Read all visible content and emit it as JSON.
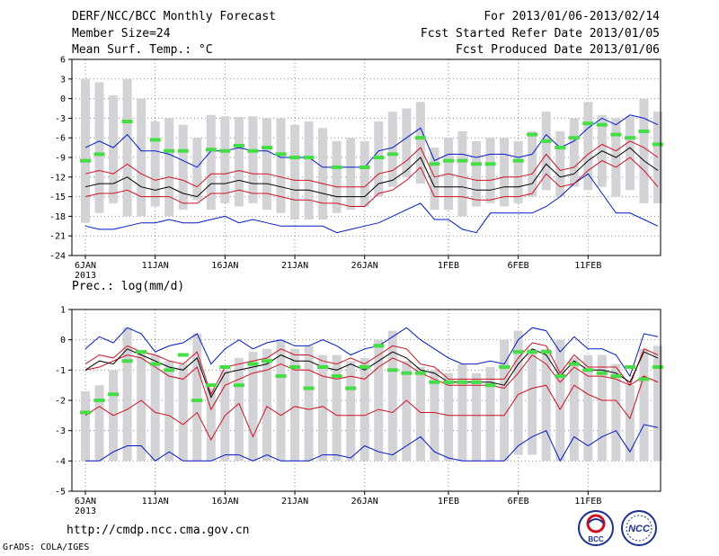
{
  "header": {
    "title": "DERF/NCC/BCC Monthly Forecast",
    "member_size": "Member Size=24",
    "variable": "Mean Surf. Temp.: °C",
    "period": "For 2013/01/06-2013/02/14",
    "start_date": "Fcst Started Refer Date 2013/01/05",
    "produced_date": "Fcst Produced Date 2013/01/06"
  },
  "footer": {
    "url": "http://cmdp.ncc.cma.gov.cn",
    "credit": "GrADS: COLA/IGES",
    "logo_bcc": "BCC",
    "logo_ncc": "NCC"
  },
  "colors": {
    "bar": "#d3d3d7",
    "median": "#000000",
    "quartile": "#d01020",
    "extreme": "#0018c8",
    "observed": "#44dd44",
    "grid": "#888888"
  },
  "chart_data": [
    {
      "type": "box-ensemble",
      "title": "Mean Surf. Temp.: °C",
      "ylim": [
        -24,
        6
      ],
      "yticks": [
        6,
        3,
        0,
        -3,
        -6,
        -9,
        -12,
        -15,
        -18,
        -21,
        -24
      ],
      "xticks": [
        {
          "day": 0,
          "label": "6JAN"
        },
        {
          "day": 5,
          "label": "11JAN"
        },
        {
          "day": 10,
          "label": "16JAN"
        },
        {
          "day": 15,
          "label": "21JAN"
        },
        {
          "day": 20,
          "label": "26JAN"
        },
        {
          "day": 26,
          "label": "1FEB"
        },
        {
          "day": 31,
          "label": "6FEB"
        },
        {
          "day": 36,
          "label": "11FEB"
        }
      ],
      "year_label": "2013",
      "bar_top": [
        3,
        2.5,
        0.5,
        3,
        0,
        -3.5,
        -3,
        -4,
        -6,
        -2.5,
        -2.7,
        -2.8,
        -2.7,
        -3,
        -3,
        -4,
        -3.5,
        -4.5,
        -6.5,
        -6,
        -6.5,
        -3.5,
        -2,
        -1.5,
        -0.5,
        -7.5,
        -6,
        -5,
        -6.5,
        -6,
        -6,
        -6.5,
        -5,
        -2,
        -5,
        -3,
        -0.5,
        -2.5,
        -3,
        -2.7,
        0,
        -2
      ],
      "bar_bottom": [
        -19,
        -17.5,
        -16,
        -18,
        -18,
        -16.5,
        -18,
        -17,
        -15.5,
        -17,
        -16,
        -16.5,
        -16,
        -17,
        -17.5,
        -18.5,
        -18.5,
        -18.5,
        -17.5,
        -17,
        -16.5,
        -15,
        -13.5,
        -12,
        -13,
        -17,
        -17,
        -18,
        -16.5,
        -16,
        -16.5,
        -16,
        -15,
        -14,
        -15,
        -13.5,
        -14,
        -13.5,
        -15,
        -14,
        -16,
        -16
      ],
      "max": [
        -7.5,
        -6.5,
        -7.5,
        -5.5,
        -8,
        -8,
        -8.5,
        -9.5,
        -10.5,
        -8,
        -8,
        -7.5,
        -8,
        -8,
        -9,
        -9,
        -9,
        -10.5,
        -10.5,
        -10.5,
        -10.5,
        -8,
        -7.5,
        -6,
        -4.5,
        -9.5,
        -8.5,
        -8.5,
        -9,
        -8.5,
        -8.5,
        -9,
        -8.5,
        -5.5,
        -7.5,
        -6.5,
        -4.5,
        -3,
        -4,
        -2.5,
        -3,
        -4
      ],
      "q75": [
        -11.5,
        -11,
        -11.5,
        -10,
        -11.5,
        -12.5,
        -12,
        -12.5,
        -13.5,
        -11.5,
        -11.5,
        -11,
        -11.5,
        -11.5,
        -12,
        -12.5,
        -12.5,
        -13,
        -13.5,
        -13.5,
        -13.5,
        -11.5,
        -11,
        -9.5,
        -7.5,
        -12,
        -11.5,
        -12,
        -12.5,
        -12.5,
        -12,
        -12,
        -11.5,
        -8.5,
        -11,
        -10.5,
        -8.5,
        -7,
        -8,
        -6.5,
        -7.5,
        -9
      ],
      "median": [
        -13.5,
        -13,
        -13,
        -12,
        -13.5,
        -14,
        -13.5,
        -14.5,
        -15,
        -13,
        -13,
        -12.5,
        -13,
        -13,
        -13.5,
        -14,
        -14,
        -14.5,
        -15,
        -15,
        -15,
        -13,
        -12.5,
        -11,
        -9,
        -13.5,
        -13.5,
        -13.5,
        -14,
        -14,
        -13.5,
        -13.5,
        -13,
        -10,
        -12,
        -11.5,
        -9.5,
        -8,
        -9,
        -7.5,
        -9.5,
        -11
      ],
      "q25": [
        -15,
        -14.5,
        -14.5,
        -14,
        -15,
        -15,
        -15,
        -16,
        -16,
        -14.5,
        -14.5,
        -14,
        -14.5,
        -14.5,
        -15,
        -15.5,
        -15.5,
        -16,
        -16,
        -16.5,
        -16.5,
        -14.5,
        -14,
        -12.5,
        -10.5,
        -15,
        -15,
        -15,
        -15.5,
        -15.5,
        -15,
        -15,
        -14.5,
        -11.5,
        -13.5,
        -13,
        -11,
        -9.5,
        -10.5,
        -9,
        -11,
        -13.5
      ],
      "min": [
        -19.5,
        -20,
        -20,
        -19.5,
        -19,
        -19,
        -18.5,
        -19,
        -19,
        -18.5,
        -18,
        -19,
        -18.5,
        -19,
        -19.5,
        -19.5,
        -19.5,
        -19.5,
        -20.5,
        -20,
        -19.5,
        -19,
        -18,
        -17,
        -16,
        -18.5,
        -18.5,
        -20,
        -20.5,
        -17.5,
        -17.5,
        -17.5,
        -17.5,
        -16.5,
        -15,
        -13,
        -11.5,
        -14.5,
        -17.5,
        -17.5,
        -18.5,
        -19.5
      ],
      "observed": [
        -9.5,
        -8.5,
        null,
        -3.5,
        null,
        -6.3,
        -8,
        -8,
        null,
        -7.8,
        -8,
        -7.2,
        -8,
        -7.5,
        -8.5,
        -9,
        -9,
        null,
        -10.5,
        null,
        -10.5,
        -9,
        -8.5,
        null,
        -6,
        -10,
        -9.5,
        -9.5,
        -10,
        -10,
        null,
        -9.5,
        -5.5,
        -6.5,
        -7.5,
        -6,
        -3.8,
        -4,
        -5.5,
        -6,
        -5,
        -7
      ]
    },
    {
      "type": "box-ensemble",
      "title": "Prec.: log(mm/d)",
      "ylim": [
        -5,
        1
      ],
      "yticks": [
        1,
        0,
        -1,
        -2,
        -3,
        -4,
        -5
      ],
      "xticks": [
        {
          "day": 0,
          "label": "6JAN"
        },
        {
          "day": 5,
          "label": "11JAN"
        },
        {
          "day": 10,
          "label": "16JAN"
        },
        {
          "day": 15,
          "label": "21JAN"
        },
        {
          "day": 20,
          "label": "26JAN"
        },
        {
          "day": 26,
          "label": "1FEB"
        },
        {
          "day": 31,
          "label": "6FEB"
        },
        {
          "day": 36,
          "label": "11FEB"
        }
      ],
      "year_label": "2013",
      "bar_top": [
        -1.7,
        -1.5,
        -1,
        0.4,
        -0.4,
        -0.5,
        -0.7,
        -0.8,
        0.2,
        -1.6,
        -1,
        -0.6,
        -0.4,
        -0.3,
        0,
        -0.3,
        -0.2,
        -0.5,
        -0.5,
        -0.7,
        -0.6,
        0,
        0.3,
        -0.7,
        -0.9,
        -1,
        -1.1,
        -0.8,
        -1.1,
        -0.9,
        0,
        0.3,
        -0.3,
        -0.3,
        0,
        -0.6,
        -0.5,
        -0.5,
        -0.8,
        -1.5,
        -0.3,
        -0.2
      ],
      "bar_bottom": [
        -4,
        -4,
        -4,
        -4,
        -4,
        -4,
        -4,
        -4,
        -4,
        -4,
        -4,
        -4,
        -4,
        -4,
        -4,
        -4,
        -4,
        -4,
        -4,
        -4,
        -4,
        -4,
        -4,
        -4,
        -4,
        -4,
        -4,
        -4,
        -4,
        -4,
        -4,
        -3.8,
        -3.8,
        -4,
        -4,
        -4,
        -4,
        -4,
        -4,
        -4,
        -4,
        -4
      ],
      "max": [
        -0.3,
        0.1,
        -0.1,
        0.4,
        0.2,
        -0.4,
        -0.2,
        -0.1,
        0.2,
        -0.8,
        -0.3,
        0,
        -0.3,
        -0.1,
        0,
        -0.2,
        -0.2,
        0,
        -0.2,
        -0.5,
        -0.3,
        -0.2,
        0.1,
        0.4,
        0,
        -0.3,
        -0.6,
        -0.8,
        -0.8,
        -0.7,
        -0.8,
        0,
        0.4,
        0.3,
        -0.4,
        0.1,
        -0.3,
        -0.3,
        -0.5,
        -1.2,
        0.2,
        0.1
      ],
      "q75": [
        -0.8,
        -0.5,
        -0.6,
        -0.2,
        -0.4,
        -0.5,
        -0.7,
        -0.8,
        -0.4,
        -1.8,
        -0.9,
        -0.8,
        -0.7,
        -0.6,
        -0.3,
        -0.5,
        -0.5,
        -0.7,
        -0.8,
        -0.6,
        -0.8,
        -0.5,
        -0.2,
        -0.3,
        -0.8,
        -0.9,
        -1.3,
        -1.3,
        -1.3,
        -1.3,
        -1.3,
        -0.6,
        -0.1,
        -0.2,
        -1.1,
        -0.5,
        -0.9,
        -0.9,
        -0.9,
        -1.5,
        -0.3,
        -0.5
      ],
      "median": [
        -1,
        -0.7,
        -0.8,
        -0.3,
        -0.5,
        -0.7,
        -0.9,
        -1,
        -0.6,
        -1.9,
        -1.1,
        -1,
        -0.9,
        -0.8,
        -0.5,
        -0.7,
        -0.7,
        -0.9,
        -1,
        -0.8,
        -1,
        -0.7,
        -0.4,
        -0.6,
        -1,
        -1.1,
        -1.4,
        -1.4,
        -1.4,
        -1.4,
        -1.5,
        -0.8,
        -0.3,
        -0.5,
        -1.2,
        -0.7,
        -1,
        -1,
        -1.1,
        -1.4,
        -0.4,
        -0.6
      ],
      "q25": [
        -1,
        -0.9,
        -0.7,
        -0.5,
        -0.6,
        -0.9,
        -1.2,
        -1.3,
        -0.9,
        -2.3,
        -1.5,
        -1.3,
        -1.1,
        -1,
        -0.8,
        -1,
        -1,
        -1.2,
        -1.3,
        -1.2,
        -1.3,
        -0.9,
        -0.6,
        -0.8,
        -1.1,
        -1.3,
        -1.5,
        -1.5,
        -1.5,
        -1.5,
        -1.6,
        -1.1,
        -0.5,
        -0.8,
        -1.4,
        -0.9,
        -1.2,
        -1.2,
        -1.3,
        -1.5,
        -1.2,
        -1.4
      ],
      "q10": [
        -2.5,
        -2.2,
        -2.5,
        -2.3,
        -2,
        -2.4,
        -2.5,
        -2.8,
        -2.4,
        -3.3,
        -2.5,
        -2.1,
        -3.2,
        -2.2,
        -2.5,
        -2.2,
        -2.3,
        -2.2,
        -2.5,
        -2.5,
        -2.5,
        -2.3,
        -2.4,
        -2,
        -2.4,
        -2.4,
        -2.5,
        -2.5,
        -2.5,
        -2.5,
        -2.5,
        -1.8,
        -1.6,
        -1.5,
        -2.3,
        -1.5,
        -1.8,
        -2,
        -2,
        -2.6,
        -1.2,
        -1.4
      ],
      "min": [
        -4,
        -4,
        -3.7,
        -3.5,
        -3.5,
        -4,
        -3.7,
        -4,
        -4,
        -4,
        -3.8,
        -3.8,
        -4,
        -3.8,
        -4,
        -4,
        -4,
        -3.8,
        -3.8,
        -3.9,
        -3.5,
        -3.7,
        -3.8,
        -3.5,
        -3.2,
        -3.7,
        -3.9,
        -4,
        -4,
        -4,
        -4,
        -3.5,
        -3.2,
        -3,
        -4,
        -3.2,
        -3.5,
        -3.2,
        -3,
        -3.7,
        -2.8,
        -2.9
      ],
      "observed": [
        -2.4,
        -2,
        -1.8,
        -0.7,
        -0.4,
        -0.8,
        -1,
        -0.5,
        -2,
        -1.5,
        -0.9,
        -1.5,
        -0.8,
        -0.7,
        -1.2,
        -0.9,
        -1.6,
        -0.9,
        -1.2,
        -1.6,
        -0.9,
        -0.2,
        -1,
        -1.1,
        -1.1,
        -1.4,
        -1.4,
        -1.4,
        -1.4,
        -1.5,
        -0.9,
        -0.4,
        -0.4,
        -0.4,
        -1.2,
        -0.8,
        -1,
        -1.1,
        -1.2,
        -0.9,
        -1.3,
        -0.9
      ]
    }
  ]
}
